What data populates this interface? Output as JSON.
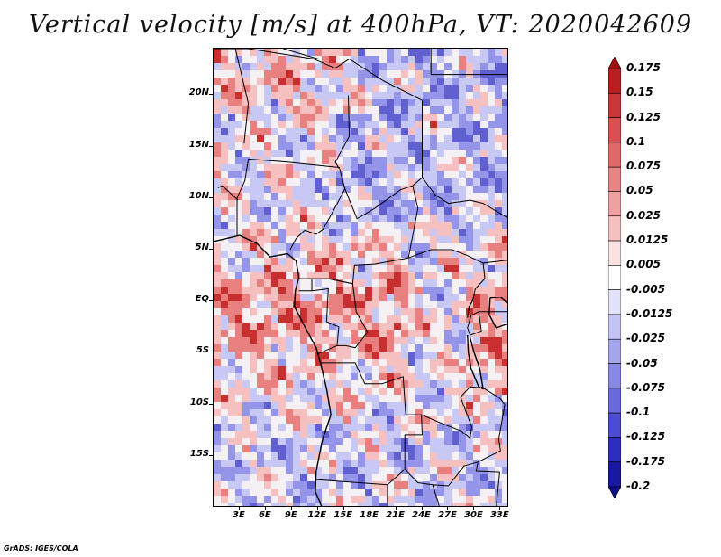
{
  "title": "Vertical velocity [m/s] at 400hPa, VT: 2020042609",
  "credit": "GrADS: IGES/COLA",
  "lat_labels": [
    "20N",
    "15N",
    "10N",
    "5N",
    "EQ",
    "5S",
    "10S",
    "15S"
  ],
  "lon_labels": [
    "3E",
    "6E",
    "9E",
    "12E",
    "15E",
    "18E",
    "21E",
    "24E",
    "27E",
    "30E",
    "33E"
  ],
  "map_extent": {
    "lon_min": 0,
    "lon_max": 34,
    "lat_min": -20,
    "lat_max": 24.5
  },
  "colorbar": {
    "labels": [
      "0.175",
      "0.15",
      "0.125",
      "0.1",
      "0.075",
      "0.05",
      "0.025",
      "0.0125",
      "0.005",
      "-0.005",
      "-0.0125",
      "-0.025",
      "-0.05",
      "-0.075",
      "-0.1",
      "-0.125",
      "-0.175",
      "-0.2"
    ],
    "colors": [
      "#a01010",
      "#b82020",
      "#c83838",
      "#d85050",
      "#e06868",
      "#e88484",
      "#f0a0a0",
      "#f6c0c0",
      "#fbe2e2",
      "#ffffff",
      "#e2e2fb",
      "#c4c4f4",
      "#a6a6ee",
      "#8888e6",
      "#6a6ade",
      "#4c4cd2",
      "#2e2ebe",
      "#1818a0",
      "#0c0c80"
    ]
  },
  "field_colors": {
    "strong_up": "#c83030",
    "up": "#e88080",
    "weak_up": "#f6c0c0",
    "neutral": "#f4f0f4",
    "weak_down": "#c8c8f4",
    "down": "#9494e8",
    "strong_down": "#6060d0"
  }
}
